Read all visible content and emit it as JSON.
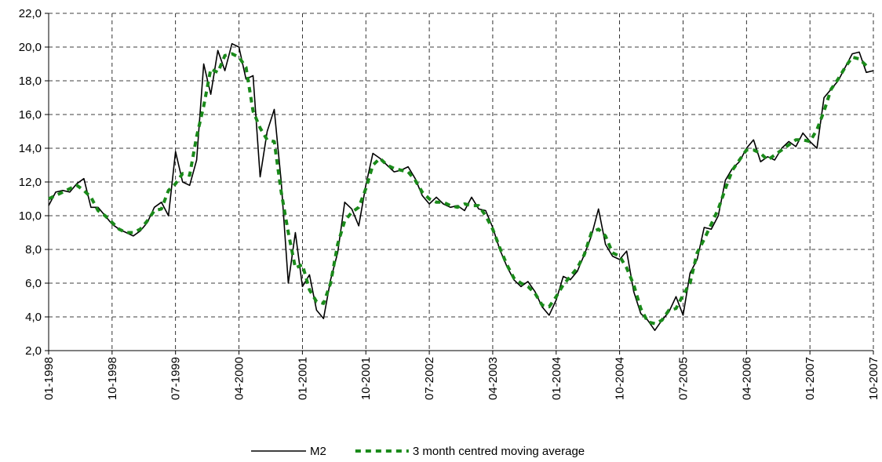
{
  "chart_data": {
    "type": "line",
    "categories": [
      "01-1998",
      null,
      null,
      null,
      null,
      null,
      null,
      null,
      null,
      "10-1998",
      null,
      null,
      null,
      null,
      null,
      null,
      null,
      null,
      "07-1999",
      null,
      null,
      null,
      null,
      null,
      null,
      null,
      null,
      "04-2000",
      null,
      null,
      null,
      null,
      null,
      null,
      null,
      null,
      "01-2001",
      null,
      null,
      null,
      null,
      null,
      null,
      null,
      null,
      "10-2001",
      null,
      null,
      null,
      null,
      null,
      null,
      null,
      null,
      "07-2002",
      null,
      null,
      null,
      null,
      null,
      null,
      null,
      null,
      "04-2003",
      null,
      null,
      null,
      null,
      null,
      null,
      null,
      null,
      "01-2004",
      null,
      null,
      null,
      null,
      null,
      null,
      null,
      null,
      "10-2004",
      null,
      null,
      null,
      null,
      null,
      null,
      null,
      null,
      "07-2005",
      null,
      null,
      null,
      null,
      null,
      null,
      null,
      null,
      "04-2006",
      null,
      null,
      null,
      null,
      null,
      null,
      null,
      null,
      "01-2007",
      null,
      null,
      null,
      null,
      null,
      null,
      null,
      null,
      "10-2007"
    ],
    "series": [
      {
        "name": "M2",
        "color": "#000000",
        "dashed": false,
        "values": [
          10.6,
          11.4,
          11.5,
          11.4,
          11.9,
          12.2,
          10.5,
          10.5,
          10.0,
          9.5,
          9.2,
          9.0,
          8.8,
          9.1,
          9.6,
          10.5,
          10.8,
          10.0,
          13.8,
          12.0,
          11.8,
          13.3,
          19.0,
          17.2,
          19.8,
          18.6,
          20.2,
          20.0,
          18.1,
          18.3,
          12.3,
          15.0,
          16.3,
          12.0,
          6.0,
          9.0,
          5.8,
          6.5,
          4.4,
          3.9,
          6.2,
          7.8,
          10.8,
          10.4,
          9.4,
          11.8,
          13.7,
          13.4,
          13.0,
          12.6,
          12.7,
          12.9,
          12.2,
          11.2,
          10.7,
          11.1,
          10.7,
          10.5,
          10.6,
          10.3,
          11.1,
          10.4,
          10.3,
          9.3,
          8.0,
          7.0,
          6.2,
          5.8,
          6.1,
          5.5,
          4.6,
          4.1,
          5.0,
          6.4,
          6.2,
          6.7,
          7.7,
          8.8,
          10.4,
          8.3,
          7.6,
          7.4,
          7.9,
          5.5,
          4.2,
          3.8,
          3.2,
          3.8,
          4.3,
          5.2,
          4.1,
          6.6,
          7.4,
          9.3,
          9.2,
          10.0,
          12.1,
          12.8,
          13.2,
          14.0,
          14.5,
          13.2,
          13.5,
          13.3,
          14.0,
          14.4,
          14.1,
          14.9,
          14.4,
          14.0,
          17.0,
          17.5,
          18.0,
          18.8,
          19.6,
          19.7,
          18.5,
          18.6
        ]
      },
      {
        "name": "3 month centred moving average",
        "color": "#1a8a1a",
        "dashed": true,
        "values": [
          11.0,
          11.2,
          11.4,
          11.6,
          11.8,
          11.5,
          11.1,
          10.3,
          10.0,
          9.6,
          9.2,
          9.0,
          9.0,
          9.2,
          9.7,
          10.3,
          10.4,
          11.5,
          11.9,
          12.5,
          12.4,
          14.7,
          16.5,
          18.7,
          18.5,
          19.5,
          19.6,
          19.4,
          18.8,
          16.2,
          15.2,
          14.5,
          14.4,
          11.4,
          9.0,
          6.9,
          7.1,
          5.6,
          4.9,
          4.8,
          6.0,
          8.3,
          9.7,
          10.2,
          10.5,
          11.6,
          13.0,
          13.4,
          13.0,
          12.8,
          12.7,
          12.6,
          12.1,
          11.4,
          11.0,
          10.8,
          10.8,
          10.6,
          10.5,
          10.7,
          10.6,
          10.6,
          10.0,
          9.2,
          8.1,
          7.1,
          6.3,
          6.0,
          5.8,
          5.4,
          4.7,
          4.6,
          5.2,
          5.9,
          6.4,
          6.9,
          7.7,
          9.0,
          9.2,
          8.8,
          7.8,
          7.6,
          6.9,
          5.9,
          4.5,
          3.7,
          3.6,
          3.8,
          4.4,
          4.5,
          5.3,
          6.0,
          7.8,
          8.6,
          9.5,
          10.4,
          11.6,
          12.7,
          13.3,
          13.9,
          13.9,
          13.7,
          13.3,
          13.6,
          13.9,
          14.2,
          14.5,
          14.5,
          14.4,
          15.1,
          16.2,
          17.5,
          18.1,
          18.8,
          19.4,
          19.3,
          18.9,
          null
        ]
      }
    ],
    "ylim": [
      2,
      22
    ],
    "yticks": [
      {
        "value": 2,
        "label": "2,0"
      },
      {
        "value": 4,
        "label": "4,0"
      },
      {
        "value": 6,
        "label": "6,0"
      },
      {
        "value": 8,
        "label": "8,0"
      },
      {
        "value": 10,
        "label": "10,0"
      },
      {
        "value": 12,
        "label": "12,0"
      },
      {
        "value": 14,
        "label": "14,0"
      },
      {
        "value": 16,
        "label": "16,0"
      },
      {
        "value": 18,
        "label": "18,0"
      },
      {
        "value": 20,
        "label": "20,0"
      },
      {
        "value": 22,
        "label": "22,0"
      }
    ],
    "grid": true,
    "legend": "bottom"
  }
}
